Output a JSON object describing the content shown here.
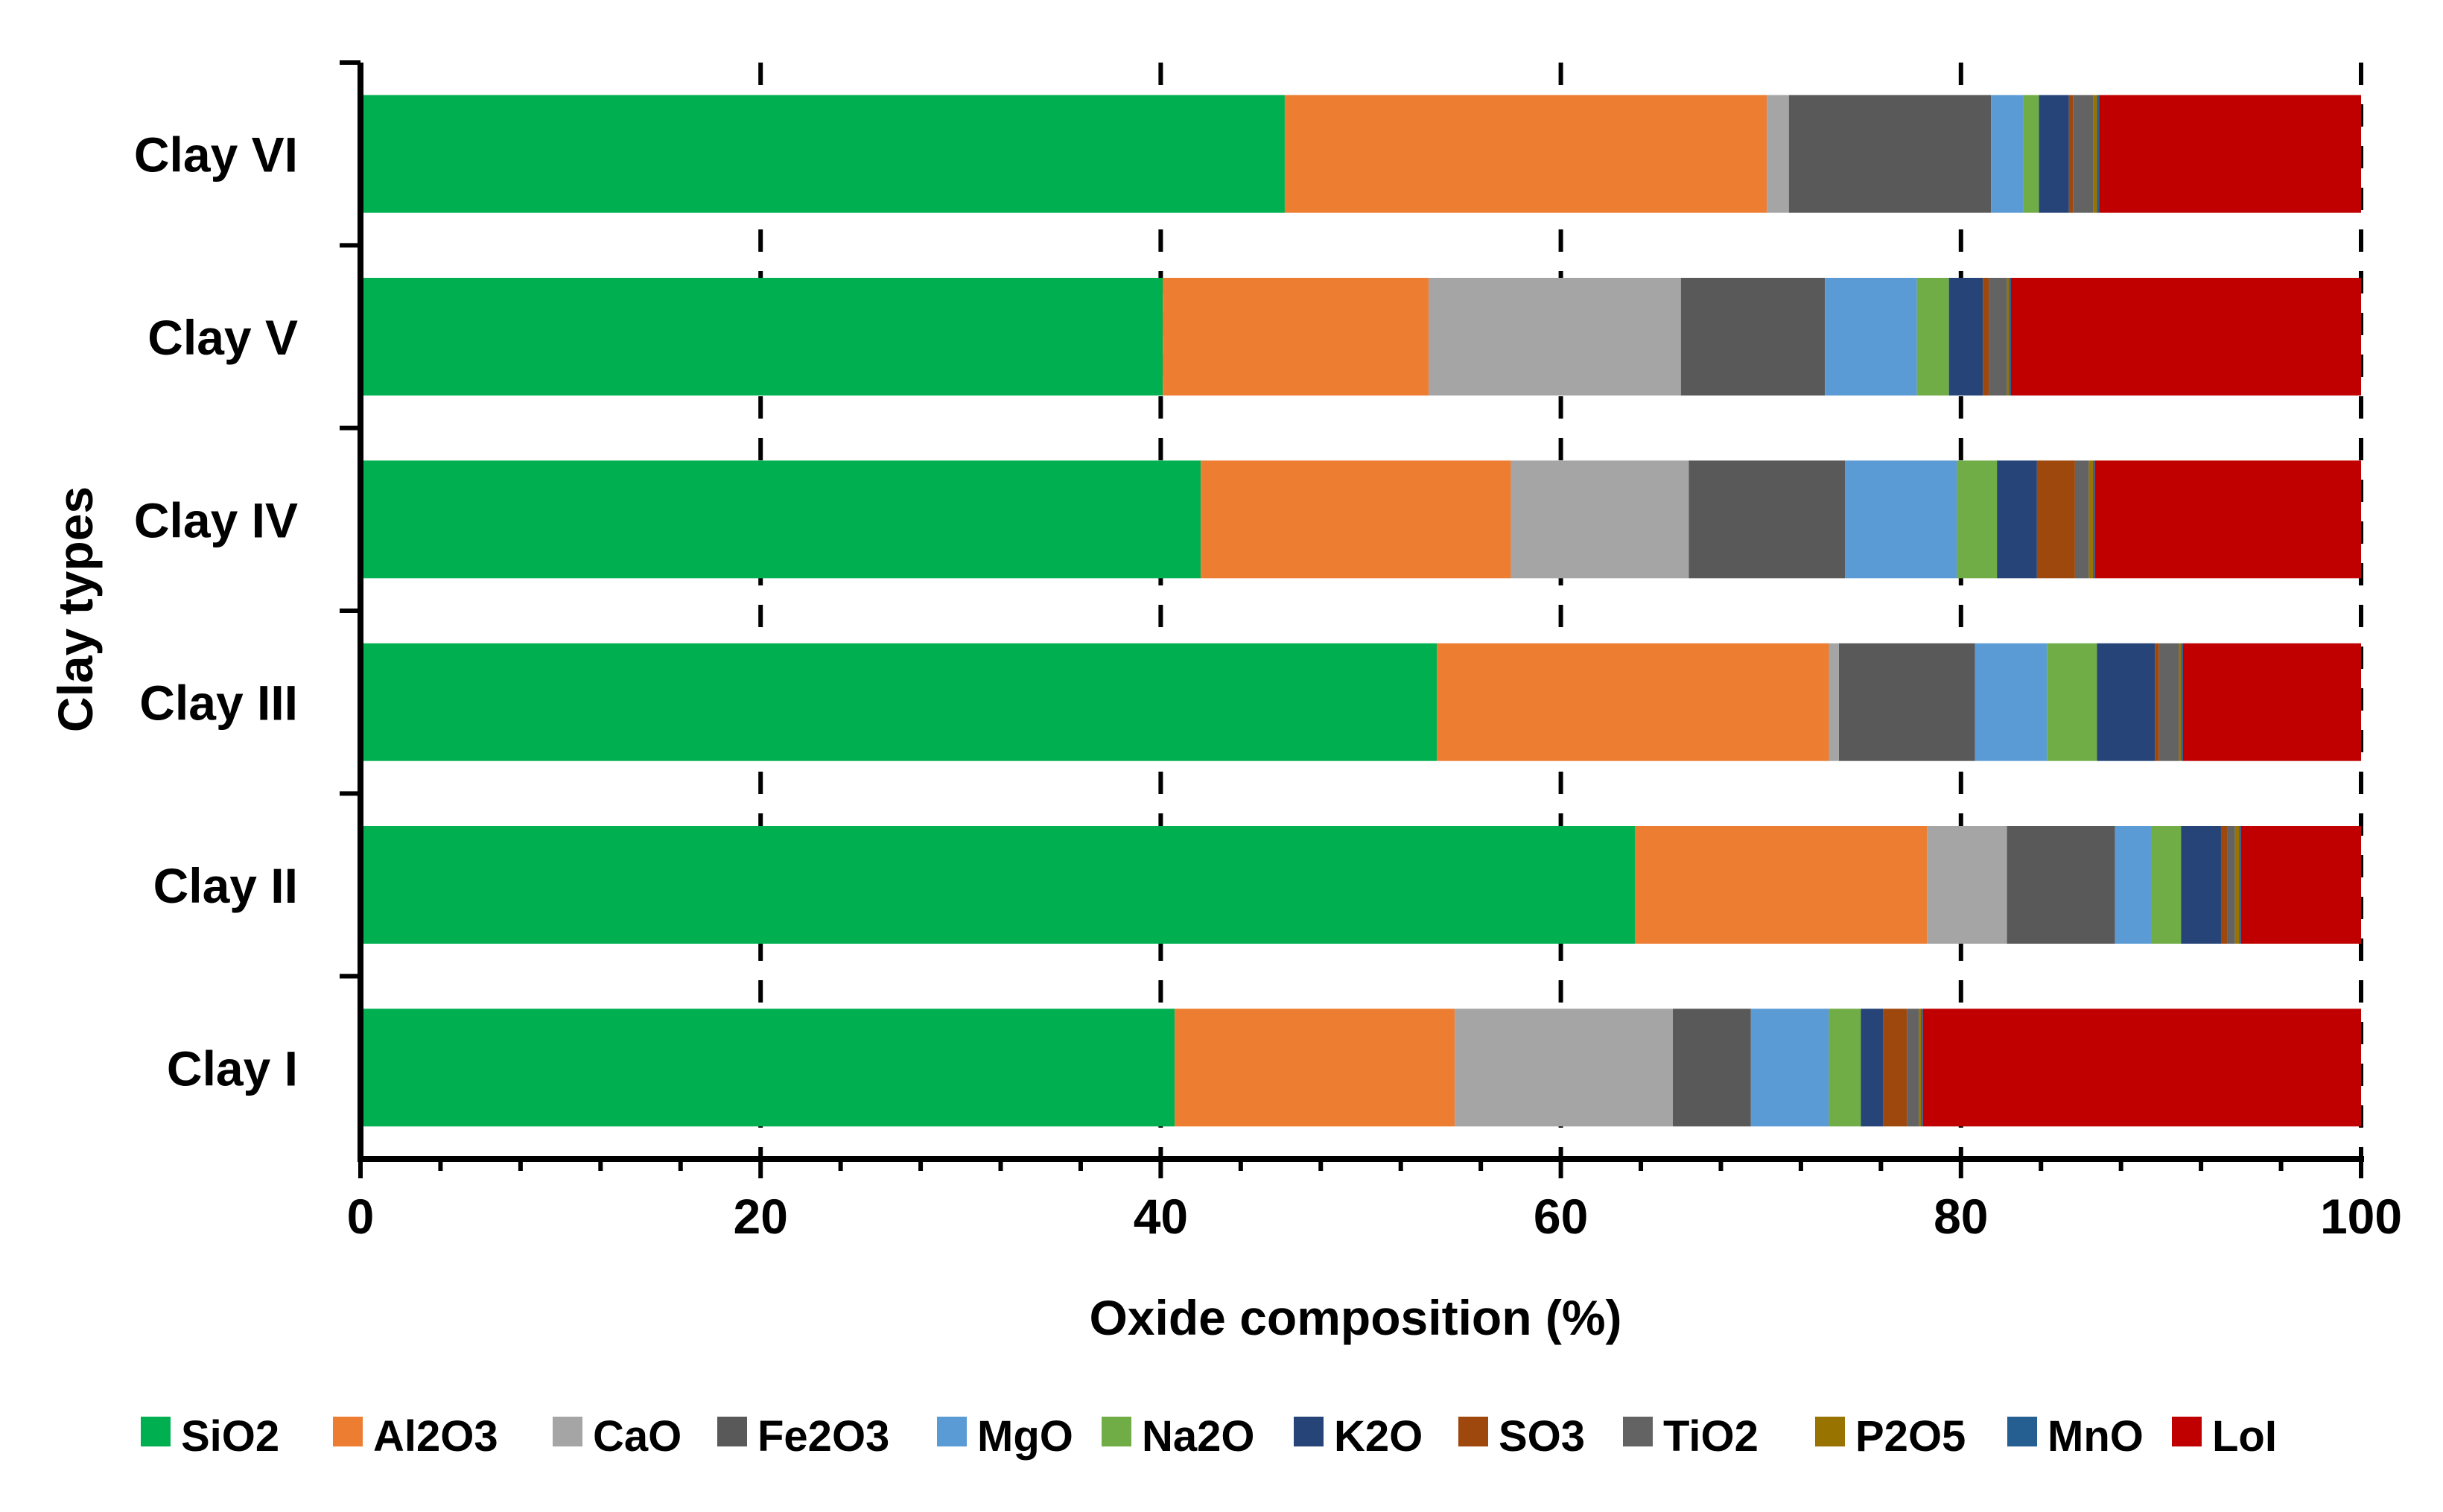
{
  "chart_data": {
    "type": "bar",
    "orientation": "horizontal",
    "stacked": true,
    "title": "",
    "xlabel": "Oxide composition (%)",
    "ylabel": "Clay types",
    "xlim": [
      0,
      100
    ],
    "xticks": [
      0,
      20,
      40,
      60,
      80,
      100
    ],
    "xtick_labels": [
      "0",
      "20",
      "40",
      "60",
      "80",
      "100"
    ],
    "grid": "vertical dashed",
    "legend_position": "bottom",
    "categories": [
      "Clay I",
      "Clay II",
      "Clay III",
      "Clay IV",
      "Clay V",
      "Clay VI"
    ],
    "series": [
      {
        "name": "SiO2",
        "color": "#00B050",
        "values": [
          40.7,
          63.7,
          53.8,
          42.0,
          40.1,
          46.2
        ]
      },
      {
        "name": "Al2O3",
        "color": "#ED7D31",
        "values": [
          14.0,
          14.6,
          19.6,
          15.5,
          13.3,
          24.1
        ]
      },
      {
        "name": "CaO",
        "color": "#A5A5A5",
        "values": [
          10.9,
          4.0,
          0.5,
          8.9,
          12.6,
          1.1
        ]
      },
      {
        "name": "Fe2O3",
        "color": "#595959",
        "values": [
          3.9,
          5.4,
          6.8,
          7.8,
          7.2,
          10.1
        ]
      },
      {
        "name": "MgO",
        "color": "#5B9BD5",
        "values": [
          3.9,
          1.8,
          3.6,
          5.6,
          4.6,
          1.6
        ]
      },
      {
        "name": "Na2O",
        "color": "#70AD47",
        "values": [
          1.6,
          1.5,
          2.5,
          2.0,
          1.6,
          0.8
        ]
      },
      {
        "name": "K2O",
        "color": "#264478",
        "values": [
          1.1,
          2.0,
          2.9,
          2.0,
          1.7,
          1.5
        ]
      },
      {
        "name": "SO3",
        "color": "#9E480E",
        "values": [
          1.2,
          0.3,
          0.2,
          1.9,
          0.3,
          0.2
        ]
      },
      {
        "name": "TiO2",
        "color": "#636363",
        "values": [
          0.6,
          0.4,
          1.0,
          0.7,
          0.9,
          1.0
        ]
      },
      {
        "name": "P2O5",
        "color": "#997300",
        "values": [
          0.1,
          0.2,
          0.1,
          0.2,
          0.1,
          0.2
        ]
      },
      {
        "name": "MnO",
        "color": "#255E91",
        "values": [
          0.1,
          0.1,
          0.1,
          0.1,
          0.1,
          0.1
        ]
      },
      {
        "name": "LoI",
        "color": "#C00000",
        "values": [
          21.9,
          6.0,
          8.9,
          13.3,
          17.5,
          13.1
        ]
      }
    ]
  }
}
